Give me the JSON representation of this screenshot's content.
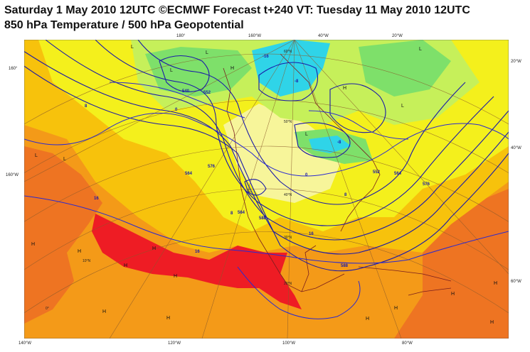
{
  "header": {
    "title": "Saturday 1 May 2010 12UTC ©ECMWF Forecast t+240 VT: Tuesday 11 May 2010 12UTC",
    "subtitle": "850 hPa Temperature / 500 hPa Geopotential"
  },
  "map": {
    "temperature_colors": {
      "green": "#7ee06a",
      "light_green": "#c6f05a",
      "cyan": "#2fd4e8",
      "yellow": "#f4f01c",
      "light_yellow": "#f7f59a",
      "gold": "#f7c20c",
      "orange": "#f49a18",
      "dark_orange": "#ee7422",
      "red": "#ee1c24"
    },
    "contour_color": "#1a1aa8",
    "longitude_labels_bottom": [
      "140°W",
      "120°W",
      "100°W",
      "80°W"
    ],
    "longitude_labels_top": [
      "180°",
      "160°W",
      "40°W",
      "20°W"
    ],
    "side_labels_left": [
      "160°",
      "160°W"
    ],
    "side_labels_right": [
      "20°W",
      "40°W",
      "60°W"
    ],
    "latitude_labels": [
      "60°N",
      "50°N",
      "40°N",
      "30°N",
      "20°N",
      "10°N",
      "0°"
    ],
    "geopotential_labels": [
      "540",
      "552",
      "564",
      "576",
      "588",
      "564",
      "552",
      "576",
      "564",
      "588"
    ],
    "temperature_labels": [
      "-16",
      "-8",
      "-8",
      "0",
      "0",
      "8",
      "8",
      "16",
      "16",
      "16",
      "8"
    ],
    "pressure_markers": {
      "low": "L",
      "high": "H"
    }
  }
}
